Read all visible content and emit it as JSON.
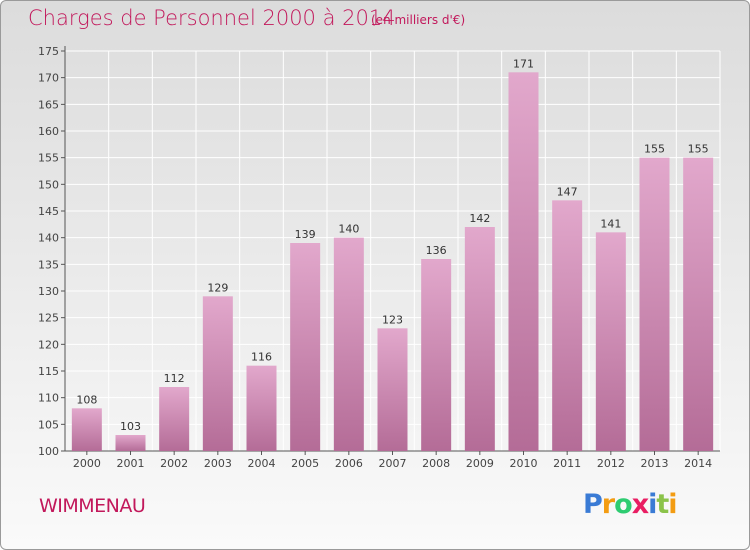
{
  "header": {
    "title": "Charges de Personnel 2000 à 2014",
    "subtitle": "(en milliers d'€)"
  },
  "footer": {
    "commune": "WIMMENAU",
    "logo": {
      "letters": [
        "P",
        "r",
        "o",
        "x",
        "i",
        "t",
        "i"
      ],
      "colors": [
        "#3a7bd5",
        "#f39c12",
        "#2ecc71",
        "#e91e63",
        "#3a7bd5",
        "#8bc34a",
        "#f39c12"
      ]
    }
  },
  "chart_data": {
    "type": "bar",
    "title": "Charges de Personnel 2000 à 2014",
    "subtitle": "(en milliers d'€)",
    "categories": [
      "2000",
      "2001",
      "2002",
      "2003",
      "2004",
      "2005",
      "2006",
      "2007",
      "2008",
      "2009",
      "2010",
      "2011",
      "2012",
      "2013",
      "2014"
    ],
    "values": [
      108,
      103,
      112,
      129,
      116,
      139,
      140,
      123,
      136,
      142,
      171,
      147,
      141,
      155,
      155
    ],
    "ylim": [
      100,
      175
    ],
    "yticks": [
      100,
      105,
      110,
      115,
      120,
      125,
      130,
      135,
      140,
      145,
      150,
      155,
      160,
      165,
      170,
      175
    ],
    "grid": true,
    "bar_color_top": "#e2a8cc",
    "bar_color_bottom": "#b46c97"
  }
}
